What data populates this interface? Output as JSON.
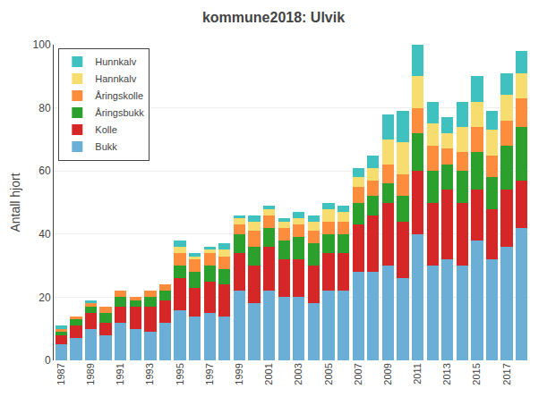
{
  "chart_data": {
    "type": "bar",
    "title": "kommune2018: Ulvik",
    "y_label": "Antall hjort",
    "stacked": true,
    "categories": [
      "1987",
      null,
      "1989",
      null,
      "1991",
      null,
      "1993",
      null,
      "1995",
      null,
      "1997",
      null,
      "1999",
      null,
      "2001",
      null,
      "2003",
      null,
      "2005",
      null,
      "2007",
      null,
      "2009",
      null,
      "2011",
      null,
      "2013",
      null,
      "2015",
      null,
      "2017",
      null
    ],
    "series": [
      {
        "name": "Bukk",
        "color": "#6baed6",
        "values": [
          5,
          7,
          10,
          8,
          12,
          10,
          9,
          12,
          16,
          14,
          15,
          14,
          22,
          18,
          22,
          20,
          20,
          18,
          22,
          22,
          28,
          28,
          30,
          26,
          40,
          30,
          32,
          30,
          38,
          32,
          36,
          42
        ]
      },
      {
        "name": "Kolle",
        "color": "#d62728",
        "values": [
          3,
          4,
          5,
          4,
          5,
          7,
          8,
          7,
          10,
          9,
          10,
          10,
          12,
          12,
          14,
          12,
          12,
          12,
          12,
          12,
          15,
          18,
          20,
          18,
          20,
          20,
          22,
          20,
          16,
          16,
          18,
          15
        ]
      },
      {
        "name": "Åringsbukk",
        "color": "#2ca02c",
        "values": [
          1,
          2,
          2,
          3,
          3,
          2,
          3,
          3,
          4,
          5,
          5,
          5,
          6,
          6,
          6,
          6,
          7,
          7,
          6,
          6,
          7,
          6,
          6,
          8,
          12,
          10,
          8,
          10,
          12,
          10,
          14,
          17
        ]
      },
      {
        "name": "Åringskolle",
        "color": "#fd8d3c",
        "values": [
          1,
          1,
          1,
          2,
          2,
          1,
          2,
          2,
          4,
          4,
          4,
          4,
          3,
          5,
          4,
          4,
          4,
          4,
          4,
          4,
          5,
          5,
          6,
          7,
          8,
          8,
          5,
          6,
          8,
          7,
          8,
          9
        ]
      },
      {
        "name": "Hannkalv",
        "color": "#f7dc6f",
        "values": [
          0,
          0,
          0,
          0,
          0,
          0,
          0,
          0,
          2,
          1,
          1,
          2,
          2,
          3,
          2,
          2,
          2,
          3,
          4,
          3,
          3,
          4,
          8,
          10,
          10,
          7,
          5,
          8,
          8,
          8,
          8,
          8
        ]
      },
      {
        "name": "Hunnkalv",
        "color": "#3fc1c0",
        "values": [
          1,
          0,
          1,
          0,
          0,
          0,
          0,
          0,
          2,
          1,
          1,
          2,
          1,
          2,
          1,
          1,
          2,
          2,
          2,
          2,
          3,
          4,
          8,
          10,
          10,
          7,
          5,
          8,
          8,
          6,
          7,
          7
        ]
      }
    ],
    "ylim": [
      0,
      100
    ],
    "yticks": [
      0,
      20,
      40,
      60,
      80,
      100
    ],
    "grid": true,
    "legend": "upper left"
  }
}
